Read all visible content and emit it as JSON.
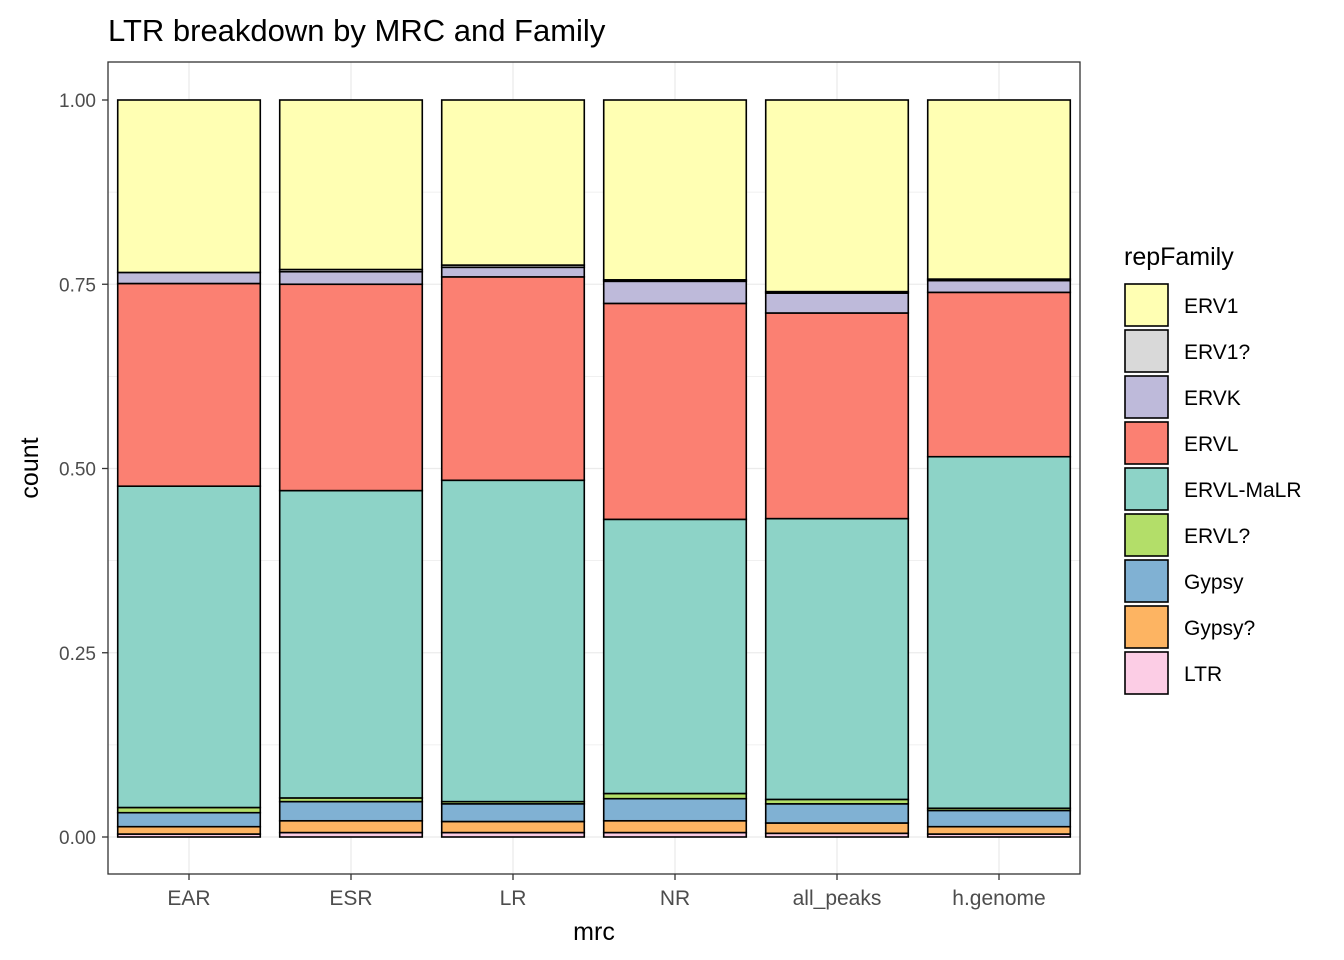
{
  "chart_data": {
    "type": "bar",
    "stacked": "fill",
    "title": "LTR breakdown by MRC and Family",
    "xlabel": "mrc",
    "ylabel": "count",
    "ylim": [
      0,
      1
    ],
    "yticks": [
      "0.00",
      "0.25",
      "0.50",
      "0.75",
      "1.00"
    ],
    "grid": true,
    "legend": {
      "title": "repFamily",
      "placement": "right"
    },
    "categories": [
      "EAR",
      "ESR",
      "LR",
      "NR",
      "all_peaks",
      "h.genome"
    ],
    "series": [
      {
        "name": "ERV1",
        "color": "#FFFFB3",
        "values": [
          0.234,
          0.23,
          0.224,
          0.244,
          0.26,
          0.243
        ]
      },
      {
        "name": "ERV1?",
        "color": "#D9D9D9",
        "values": [
          0.0,
          0.003,
          0.003,
          0.002,
          0.002,
          0.002
        ]
      },
      {
        "name": "ERVK",
        "color": "#BEBADA",
        "values": [
          0.015,
          0.017,
          0.013,
          0.03,
          0.027,
          0.016
        ]
      },
      {
        "name": "ERVL",
        "color": "#FB8072",
        "values": [
          0.275,
          0.28,
          0.276,
          0.293,
          0.279,
          0.223
        ]
      },
      {
        "name": "ERVL-MaLR",
        "color": "#8DD3C7",
        "values": [
          0.436,
          0.417,
          0.436,
          0.372,
          0.381,
          0.477
        ]
      },
      {
        "name": "ERVL?",
        "color": "#B3DE69",
        "values": [
          0.007,
          0.005,
          0.003,
          0.007,
          0.006,
          0.003
        ]
      },
      {
        "name": "Gypsy",
        "color": "#80B1D3",
        "values": [
          0.019,
          0.026,
          0.024,
          0.03,
          0.026,
          0.022
        ]
      },
      {
        "name": "Gypsy?",
        "color": "#FDB462",
        "values": [
          0.01,
          0.016,
          0.015,
          0.016,
          0.014,
          0.01
        ]
      },
      {
        "name": "LTR",
        "color": "#FCCDE5",
        "values": [
          0.004,
          0.006,
          0.006,
          0.006,
          0.005,
          0.004
        ]
      }
    ]
  }
}
